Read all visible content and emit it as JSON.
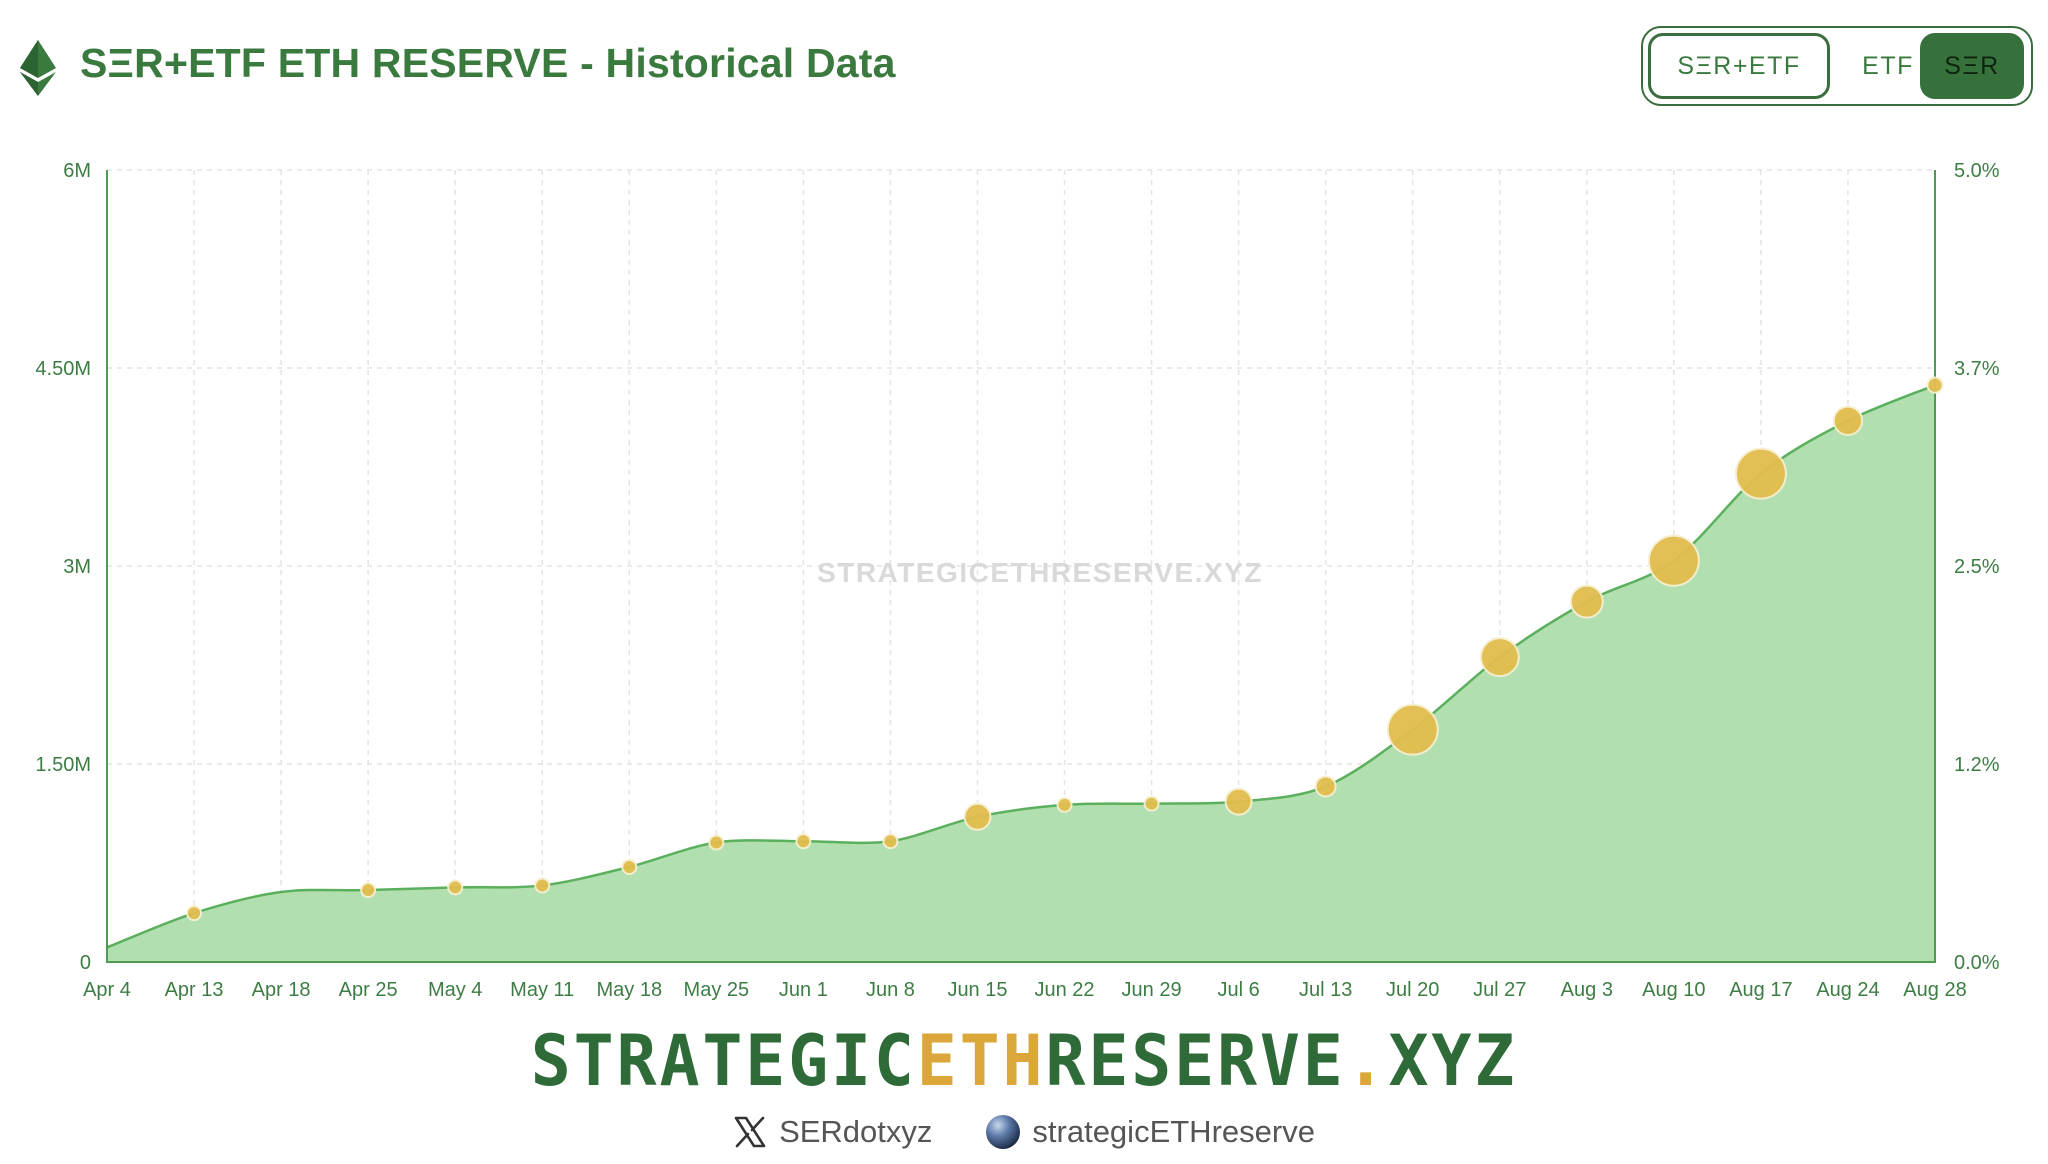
{
  "header": {
    "title": "SΞR+ETF ETH RESERVE - Historical Data",
    "logo_icon": "ethereum-icon"
  },
  "toggle": {
    "options": [
      "SΞR+ETF",
      "ETF",
      "SΞR"
    ],
    "selected": "SΞR"
  },
  "watermark": "STRATEGICETHRESERVE.XYZ",
  "chart_data": {
    "type": "area",
    "title": "SΞR+ETF ETH RESERVE - Historical Data",
    "x": [
      "Apr 4",
      "Apr 13",
      "Apr 18",
      "Apr 25",
      "May 4",
      "May 11",
      "May 18",
      "May 25",
      "Jun 1",
      "Jun 8",
      "Jun 15",
      "Jun 22",
      "Jun 29",
      "Jul 6",
      "Jul 13",
      "Jul 20",
      "Jul 27",
      "Aug 3",
      "Aug 10",
      "Aug 17",
      "Aug 24",
      "Aug 28"
    ],
    "series": [
      {
        "values": [
          110000,
          370000,
          530000,
          545000,
          565000,
          580000,
          720000,
          905000,
          915000,
          915000,
          1100000,
          1190000,
          1200000,
          1215000,
          1330000,
          1760000,
          2310000,
          2730000,
          3040000,
          3700000,
          4100000,
          4370000
        ],
        "point_sizes": [
          0,
          1,
          0,
          1,
          1,
          1,
          1,
          1,
          1,
          1,
          2,
          1,
          1,
          2,
          1.5,
          4,
          3,
          2.5,
          4,
          4,
          2.2,
          1.1
        ]
      }
    ],
    "y_left": {
      "ticks": [
        "0",
        "1.50M",
        "3M",
        "4.50M",
        "6M"
      ],
      "range": [
        0,
        6000000
      ]
    },
    "y_right": {
      "ticks": [
        "0.0%",
        "1.2%",
        "2.5%",
        "3.7%",
        "5.0%"
      ],
      "range": [
        0,
        5
      ]
    },
    "grid": true,
    "legend": "none",
    "colors": {
      "fill": "#b2dfaf",
      "line": "#5ab05c",
      "point": "#e2bd4e",
      "axis": "#4f9b54",
      "text": "#3d7d44",
      "grid": "#e4e4e4"
    }
  },
  "footer": {
    "brand": {
      "part1": "STRATEGIC",
      "part2": "ETH",
      "part3": "RESERVE",
      "part4": ".",
      "part5": "XYZ"
    },
    "socials": [
      {
        "icon": "x-icon",
        "label": "SERdotxyz"
      },
      {
        "icon": "globe-icon",
        "label": "strategicETHreserve"
      }
    ]
  }
}
